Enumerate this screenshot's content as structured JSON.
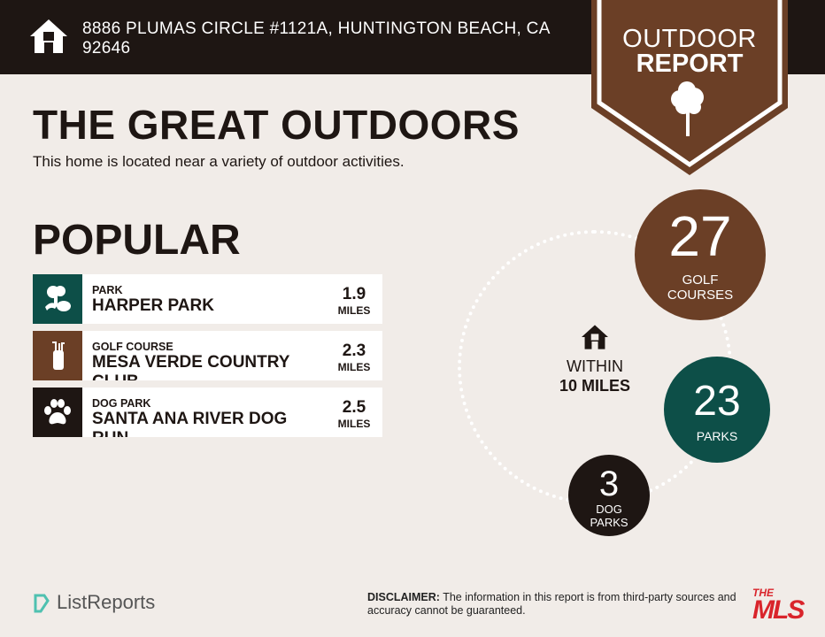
{
  "header": {
    "address": "8886 PLUMAS CIRCLE #1121A, HUNTINGTON BEACH, CA 92646",
    "icon": "home-icon"
  },
  "badge": {
    "line1": "OUTDOOR",
    "line2": "REPORT",
    "icon": "tree-icon"
  },
  "title": "THE GREAT OUTDOORS",
  "subtitle": "This home is located near a variety of outdoor activities.",
  "popular": {
    "heading": "POPULAR",
    "items": [
      {
        "category": "PARK",
        "name": "HARPER PARK",
        "distance": "1.9",
        "unit": "MILES",
        "icon": "park-icon",
        "color": "#0d4f48"
      },
      {
        "category": "GOLF COURSE",
        "name": "MESA VERDE COUNTRY CLUB",
        "distance": "2.3",
        "unit": "MILES",
        "icon": "golf-bag-icon",
        "color": "#6b3f26"
      },
      {
        "category": "DOG PARK",
        "name": "SANTA ANA RIVER DOG RUN",
        "distance": "2.5",
        "unit": "MILES",
        "icon": "paw-icon",
        "color": "#1e1613"
      }
    ]
  },
  "summary": {
    "within": "WITHIN",
    "radius": "10 MILES",
    "golf": {
      "count": "27",
      "label1": "GOLF",
      "label2": "COURSES",
      "color": "#6b3f26"
    },
    "parks": {
      "count": "23",
      "label1": "PARKS",
      "color": "#0d4f48"
    },
    "dogs": {
      "count": "3",
      "label1": "DOG",
      "label2": "PARKS",
      "color": "#1e1613"
    }
  },
  "footer": {
    "brand": "ListReports",
    "disclaimer_label": "DISCLAIMER:",
    "disclaimer_text": " The information in this report is from third-party sources and",
    "disclaimer_text2": "accuracy cannot be guaranteed.",
    "mls_logo": "THE MLS .COM"
  }
}
